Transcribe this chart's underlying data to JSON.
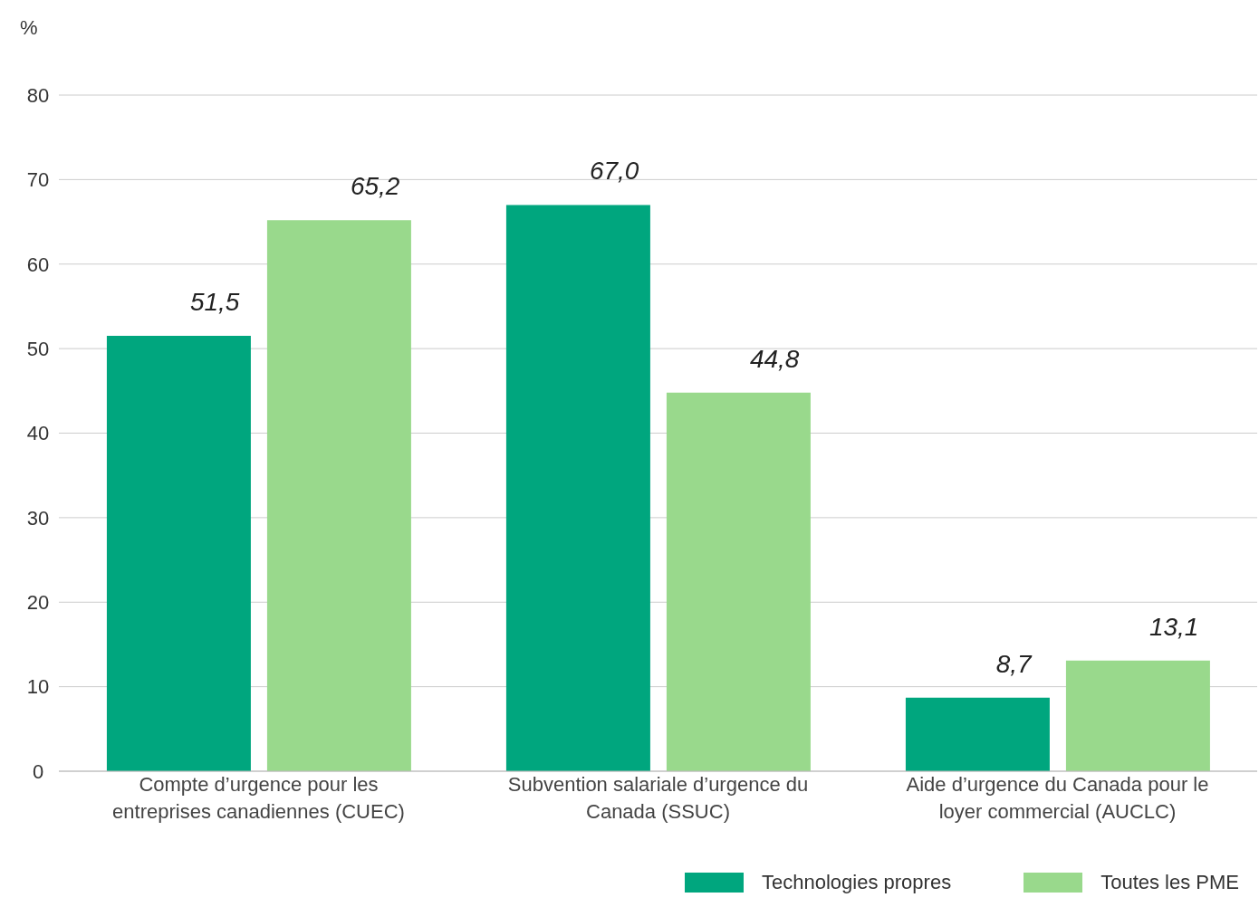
{
  "chart_data": {
    "type": "bar",
    "ylabel": "%",
    "categories": [
      "Compte d’urgence pour les entreprises canadiennes (CUEC)",
      "Subvention salariale d’urgence du Canada (SSUC)",
      "Aide d’urgence du Canada pour le loyer commercial (AUCLC)"
    ],
    "series": [
      {
        "name": "Technologies propres",
        "color": "#00a67e",
        "values": [
          51.5,
          67.0,
          8.7
        ],
        "value_labels": [
          "51,5",
          "67,0",
          "8,7"
        ]
      },
      {
        "name": "Toutes les PME",
        "color": "#99d98c",
        "values": [
          65.2,
          44.8,
          13.1
        ],
        "value_labels": [
          "65,2",
          "44,8",
          "13,1"
        ]
      }
    ],
    "ylim": [
      0,
      80
    ],
    "yticks": [
      0,
      10,
      20,
      30,
      40,
      50,
      60,
      70,
      80
    ],
    "grid": "y",
    "legend": "bottom right"
  }
}
